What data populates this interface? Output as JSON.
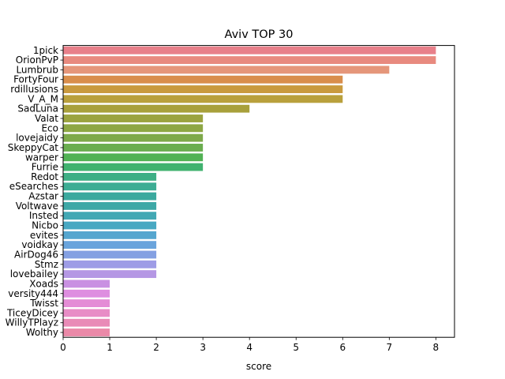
{
  "chart_data": {
    "type": "bar",
    "orientation": "horizontal",
    "title": "Aviv TOP 30",
    "xlabel": "score",
    "ylabel": "",
    "xlim": [
      0,
      8.4
    ],
    "xticks": [
      0,
      1,
      2,
      3,
      4,
      5,
      6,
      7,
      8
    ],
    "grid": false,
    "categories": [
      "1pick",
      "OrionPvP",
      "Lumbrub",
      "FortyFour",
      "rdillusions",
      "V_A_M",
      "SadLuna",
      "Valat",
      "Eco",
      "lovejaidy",
      "SkeppyCat",
      "warper",
      "Furrie",
      "Redot",
      "eSearches",
      "Azstar",
      "Voltwave",
      "Insted",
      "Nicbo",
      "evites",
      "voidkay",
      "AirDog46",
      "Stmz",
      "lovebailey",
      "Xoads",
      "versity444",
      "Twisst",
      "TiceyDicey",
      "WillyTPlayz",
      "Wolthy"
    ],
    "values": [
      8,
      8,
      7,
      6,
      6,
      6,
      4,
      3,
      3,
      3,
      3,
      3,
      3,
      2,
      2,
      2,
      2,
      2,
      2,
      2,
      2,
      2,
      2,
      2,
      1,
      1,
      1,
      1,
      1,
      1
    ],
    "colors": [
      "#e8808a",
      "#e88a7f",
      "#e5967a",
      "#d98e4c",
      "#c99a3e",
      "#b9a03c",
      "#a8a03b",
      "#9ba33f",
      "#8ea744",
      "#7ea94a",
      "#6aad4f",
      "#51b254",
      "#40b26f",
      "#3eaf85",
      "#3dad94",
      "#3ba99e",
      "#3da8a6",
      "#42a8b4",
      "#48a8c2",
      "#55a6cf",
      "#6aa4dc",
      "#84a0e2",
      "#9e9ce6",
      "#b597e4",
      "#c990e2",
      "#de8ee0",
      "#e48cd6",
      "#e88cc6",
      "#e98bb7",
      "#ea89a8"
    ]
  }
}
